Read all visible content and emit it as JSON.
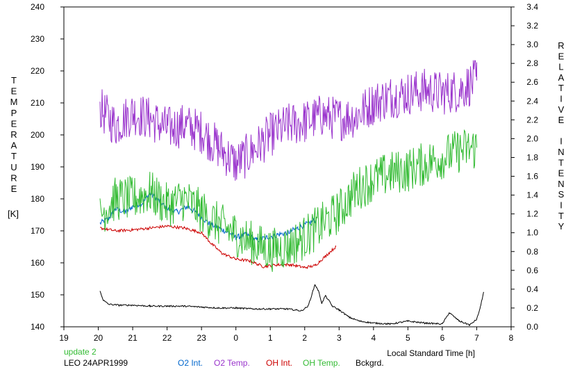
{
  "chart_data": {
    "type": "line",
    "title": "",
    "xlabel": "Local Standard Time [h]",
    "ylabel_left": "TEMPERATURE",
    "ylabel_left_unit": "[K]",
    "ylabel_right": "RELATIVE INTENSITY",
    "x_ticks": [
      "19",
      "20",
      "21",
      "22",
      "23",
      "0",
      "1",
      "2",
      "3",
      "4",
      "5",
      "6",
      "7",
      "8"
    ],
    "xlim": [
      19,
      32
    ],
    "ylim_left": [
      140,
      240
    ],
    "ylim_right": [
      0.0,
      3.4
    ],
    "y_left_ticks": [
      "140",
      "150",
      "160",
      "170",
      "180",
      "190",
      "200",
      "210",
      "220",
      "230",
      "240"
    ],
    "y_right_ticks": [
      "0.0",
      "0.2",
      "0.4",
      "0.6",
      "0.8",
      "1.0",
      "1.2",
      "1.4",
      "1.6",
      "1.8",
      "2.0",
      "2.2",
      "2.4",
      "2.6",
      "2.8",
      "3.0",
      "3.2",
      "3.4"
    ],
    "annotations": {
      "update": "update 2",
      "station": "LEO 24APR1999"
    },
    "series": [
      {
        "name": "O2 Int.",
        "color": "#0066cc",
        "axis": "right",
        "noise": 0.03,
        "x": [
          20.05,
          20.3,
          20.5,
          20.8,
          21.0,
          21.3,
          21.5,
          21.8,
          22.0,
          22.3,
          22.6,
          22.9,
          23.2,
          23.5,
          23.8,
          24.0,
          24.3,
          24.6,
          24.9,
          25.2,
          25.5,
          25.8,
          26.1,
          26.3
        ],
        "y": [
          1.1,
          1.15,
          1.25,
          1.22,
          1.28,
          1.32,
          1.42,
          1.33,
          1.25,
          1.22,
          1.28,
          1.2,
          1.1,
          1.05,
          1.0,
          0.95,
          0.98,
          0.92,
          0.95,
          0.98,
          1.0,
          1.05,
          1.1,
          1.13
        ]
      },
      {
        "name": "O2 Temp.",
        "color": "#9933cc",
        "axis": "left",
        "noise": 7,
        "x": [
          20.05,
          20.5,
          21.0,
          21.5,
          22.0,
          22.5,
          23.0,
          23.5,
          24.0,
          24.5,
          25.0,
          25.5,
          26.0,
          26.5,
          27.0,
          27.5,
          28.0,
          28.5,
          29.0,
          29.5,
          30.0,
          30.5,
          31.0
        ],
        "y": [
          208,
          203,
          207,
          205,
          202,
          203,
          201,
          196,
          191,
          195,
          200,
          203,
          204,
          206,
          205,
          206,
          210,
          212,
          213,
          214,
          213,
          214,
          217
        ]
      },
      {
        "name": "OH Int.",
        "color": "#cc0000",
        "axis": "right",
        "noise": 0.015,
        "x": [
          20.05,
          20.5,
          21.0,
          21.5,
          22.0,
          22.5,
          23.0,
          23.3,
          23.6,
          24.0,
          24.4,
          24.8,
          25.2,
          25.6,
          26.0,
          26.3,
          26.6,
          26.9
        ],
        "y": [
          1.05,
          1.02,
          1.03,
          1.05,
          1.07,
          1.05,
          1.0,
          0.88,
          0.78,
          0.72,
          0.7,
          0.64,
          0.66,
          0.66,
          0.63,
          0.65,
          0.75,
          0.85
        ]
      },
      {
        "name": "OH Temp.",
        "color": "#33bb33",
        "axis": "left",
        "noise": 7,
        "x": [
          20.05,
          20.5,
          21.0,
          21.5,
          22.0,
          22.5,
          23.0,
          23.5,
          24.0,
          24.5,
          25.0,
          25.5,
          26.0,
          26.5,
          27.0,
          27.5,
          28.0,
          28.5,
          29.0,
          29.5,
          30.0,
          30.5,
          31.0
        ],
        "y": [
          175,
          180,
          180,
          182,
          178,
          180,
          176,
          172,
          169,
          166,
          164,
          165,
          168,
          172,
          176,
          183,
          186,
          188,
          189,
          191,
          193,
          195,
          196
        ]
      },
      {
        "name": "Bckgrd.",
        "color": "#000000",
        "axis": "right",
        "noise": 0.008,
        "x": [
          20.05,
          20.15,
          20.3,
          20.6,
          21.0,
          21.5,
          22.0,
          22.5,
          23.0,
          23.5,
          24.0,
          24.5,
          25.0,
          25.5,
          25.9,
          26.1,
          26.3,
          26.4,
          26.5,
          26.6,
          26.7,
          26.8,
          27.0,
          27.3,
          27.6,
          28.0,
          28.5,
          29.0,
          29.5,
          30.0,
          30.2,
          30.5,
          30.8,
          31.0,
          31.1,
          31.2
        ],
        "y": [
          0.38,
          0.28,
          0.24,
          0.23,
          0.23,
          0.22,
          0.22,
          0.22,
          0.21,
          0.2,
          0.2,
          0.19,
          0.19,
          0.19,
          0.17,
          0.22,
          0.45,
          0.38,
          0.25,
          0.33,
          0.28,
          0.22,
          0.18,
          0.1,
          0.06,
          0.04,
          0.03,
          0.06,
          0.04,
          0.03,
          0.15,
          0.06,
          0.02,
          0.08,
          0.2,
          0.37
        ]
      }
    ]
  }
}
